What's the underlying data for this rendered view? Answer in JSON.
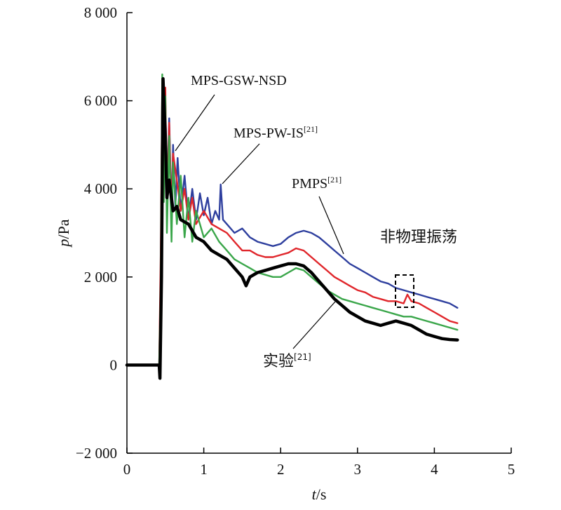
{
  "chart_data": {
    "type": "line",
    "xlabel": {
      "var": "t",
      "unit": "/s"
    },
    "ylabel": {
      "var": "p",
      "unit": "/Pa"
    },
    "xlim": [
      0,
      5
    ],
    "ylim": [
      -2000,
      8000
    ],
    "x_ticks": [
      {
        "value": 0,
        "label": "0"
      },
      {
        "value": 1,
        "label": "1"
      },
      {
        "value": 2,
        "label": "2"
      },
      {
        "value": 3,
        "label": "3"
      },
      {
        "value": 4,
        "label": "4"
      },
      {
        "value": 5,
        "label": "5"
      }
    ],
    "y_ticks": [
      {
        "value": -2000,
        "label": "−2 000"
      },
      {
        "value": 0,
        "label": "0"
      },
      {
        "value": 2000,
        "label": "2 000"
      },
      {
        "value": 4000,
        "label": "4 000"
      },
      {
        "value": 6000,
        "label": "6 000"
      },
      {
        "value": 8000,
        "label": "8 000"
      }
    ],
    "grid": false,
    "series": [
      {
        "name": "MPS-PW-IS[21]",
        "color": "#2e3f9e",
        "x": [
          0,
          0.42,
          0.44,
          0.46,
          0.48,
          0.5,
          0.52,
          0.55,
          0.58,
          0.6,
          0.63,
          0.66,
          0.7,
          0.75,
          0.8,
          0.85,
          0.9,
          0.95,
          1.0,
          1.05,
          1.1,
          1.15,
          1.2,
          1.22,
          1.25,
          1.3,
          1.4,
          1.5,
          1.6,
          1.7,
          1.8,
          1.9,
          2.0,
          2.1,
          2.2,
          2.3,
          2.4,
          2.5,
          2.6,
          2.7,
          2.8,
          2.9,
          3.0,
          3.1,
          3.2,
          3.3,
          3.4,
          3.5,
          3.6,
          3.7,
          3.8,
          3.9,
          4.0,
          4.1,
          4.2,
          4.3
        ],
        "y": [
          0,
          0,
          2000,
          6400,
          4200,
          6000,
          3800,
          5600,
          3400,
          5000,
          3600,
          4700,
          3500,
          4300,
          3300,
          4000,
          3300,
          3900,
          3400,
          3800,
          3200,
          3500,
          3300,
          4100,
          3300,
          3200,
          3000,
          3100,
          2900,
          2800,
          2750,
          2700,
          2750,
          2900,
          3000,
          3050,
          3000,
          2900,
          2750,
          2600,
          2450,
          2300,
          2200,
          2100,
          2000,
          1900,
          1850,
          1750,
          1700,
          1650,
          1600,
          1550,
          1500,
          1450,
          1400,
          1300
        ]
      },
      {
        "name": "PMPS[21]",
        "color": "#e0262b",
        "x": [
          0,
          0.42,
          0.44,
          0.46,
          0.48,
          0.5,
          0.52,
          0.55,
          0.58,
          0.6,
          0.65,
          0.7,
          0.75,
          0.8,
          0.85,
          0.9,
          1.0,
          1.1,
          1.2,
          1.3,
          1.4,
          1.5,
          1.6,
          1.7,
          1.8,
          1.9,
          2.0,
          2.1,
          2.2,
          2.3,
          2.4,
          2.5,
          2.6,
          2.7,
          2.8,
          2.9,
          3.0,
          3.1,
          3.2,
          3.3,
          3.4,
          3.5,
          3.6,
          3.65,
          3.7,
          3.8,
          3.9,
          4.0,
          4.1,
          4.2,
          4.3
        ],
        "y": [
          0,
          0,
          2500,
          6500,
          4000,
          6300,
          3500,
          5500,
          3300,
          4800,
          4200,
          3500,
          4000,
          3300,
          3800,
          3200,
          3500,
          3200,
          3100,
          3000,
          2800,
          2600,
          2600,
          2500,
          2450,
          2450,
          2500,
          2550,
          2650,
          2600,
          2450,
          2300,
          2150,
          2000,
          1900,
          1800,
          1700,
          1650,
          1550,
          1500,
          1450,
          1450,
          1400,
          1600,
          1450,
          1400,
          1300,
          1200,
          1100,
          1000,
          950
        ]
      },
      {
        "name": "MPS-GSW-NSD",
        "color": "#3aa64a",
        "x": [
          0,
          0.42,
          0.44,
          0.46,
          0.48,
          0.5,
          0.52,
          0.55,
          0.58,
          0.6,
          0.65,
          0.7,
          0.75,
          0.8,
          0.85,
          0.9,
          1.0,
          1.1,
          1.2,
          1.3,
          1.4,
          1.5,
          1.6,
          1.7,
          1.8,
          1.9,
          2.0,
          2.1,
          2.2,
          2.3,
          2.4,
          2.5,
          2.6,
          2.7,
          2.8,
          2.9,
          3.0,
          3.1,
          3.2,
          3.3,
          3.4,
          3.5,
          3.6,
          3.7,
          3.8,
          3.9,
          4.0,
          4.1,
          4.2,
          4.3
        ],
        "y": [
          0,
          0,
          1800,
          6600,
          3700,
          6100,
          3000,
          5200,
          2800,
          4600,
          3200,
          4300,
          2900,
          3800,
          2800,
          3500,
          2900,
          3100,
          2800,
          2600,
          2400,
          2300,
          2200,
          2100,
          2050,
          2000,
          2000,
          2100,
          2200,
          2150,
          2000,
          1850,
          1700,
          1600,
          1500,
          1450,
          1400,
          1350,
          1300,
          1250,
          1200,
          1150,
          1100,
          1100,
          1050,
          1000,
          950,
          900,
          850,
          800
        ]
      },
      {
        "name": "实验[21]",
        "color": "#000000",
        "x": [
          0,
          0.42,
          0.43,
          0.45,
          0.47,
          0.5,
          0.52,
          0.55,
          0.6,
          0.65,
          0.7,
          0.8,
          0.9,
          1.0,
          1.1,
          1.2,
          1.3,
          1.4,
          1.5,
          1.55,
          1.6,
          1.7,
          1.8,
          1.9,
          2.0,
          2.1,
          2.2,
          2.3,
          2.4,
          2.5,
          2.6,
          2.7,
          2.8,
          2.9,
          3.0,
          3.1,
          3.2,
          3.3,
          3.4,
          3.5,
          3.6,
          3.7,
          3.8,
          3.9,
          4.0,
          4.1,
          4.2,
          4.3
        ],
        "y": [
          0,
          0,
          -300,
          2000,
          6500,
          5200,
          3800,
          4200,
          3500,
          3600,
          3300,
          3200,
          2900,
          2800,
          2600,
          2500,
          2400,
          2200,
          2000,
          1800,
          2000,
          2100,
          2150,
          2200,
          2250,
          2300,
          2300,
          2250,
          2100,
          1900,
          1700,
          1500,
          1350,
          1200,
          1100,
          1000,
          950,
          900,
          950,
          1000,
          950,
          900,
          800,
          700,
          650,
          600,
          580,
          570
        ]
      }
    ],
    "annotations": {
      "gsw": {
        "text": "MPS-GSW-NSD"
      },
      "pwis": {
        "text": "MPS-PW-IS",
        "ref": "[21]"
      },
      "pmps": {
        "text": "PMPS",
        "ref": "[21]"
      },
      "noise": {
        "text": "非物理振荡"
      },
      "exp": {
        "text": "实验",
        "ref": "[21]"
      }
    }
  }
}
